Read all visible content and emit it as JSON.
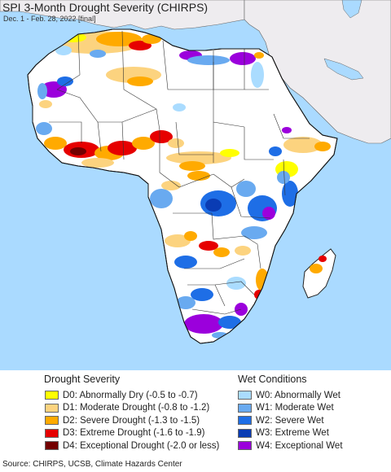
{
  "title": "SPI 3-Month Drought Severity (CHIRPS)",
  "subtitle": "Dec. 1 - Feb. 28, 2022 [final]",
  "legend": {
    "drought_title": "Drought Severity",
    "wet_title": "Wet Conditions",
    "drought": [
      {
        "label": "D0: Abnormally Dry (-0.5 to -0.7)",
        "color": "#ffff00"
      },
      {
        "label": "D1: Moderate Drought (-0.8 to -1.2)",
        "color": "#fcd37f"
      },
      {
        "label": "D2: Severe Drought (-1.3 to -1.5)",
        "color": "#ffaa00"
      },
      {
        "label": "D3: Extreme Drought (-1.6 to -1.9)",
        "color": "#e60000"
      },
      {
        "label": "D4: Exceptional Drought (-2.0 or less)",
        "color": "#730000"
      }
    ],
    "wet": [
      {
        "label": "W0: Abnormally Wet",
        "color": "#aadcff"
      },
      {
        "label": "W1: Moderate Wet",
        "color": "#69aaf0"
      },
      {
        "label": "W2: Severe Wet",
        "color": "#1e6ee6"
      },
      {
        "label": "W3: Extreme Wet",
        "color": "#0a3cb4"
      },
      {
        "label": "W4: Exceptional Wet",
        "color": "#9b00dc"
      }
    ]
  },
  "source": "Source: CHIRPS, UCSB, Climate Hazards Center",
  "colors": {
    "ocean": "#aadaff",
    "land_base": "#ffffff",
    "outside": "#eeecef"
  }
}
